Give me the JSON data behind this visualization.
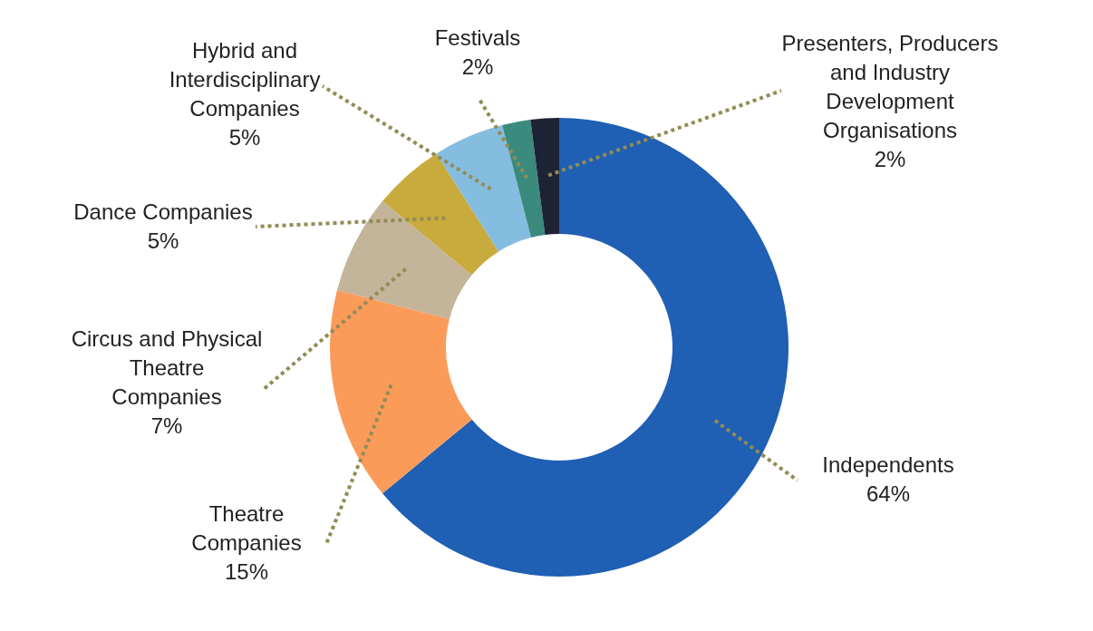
{
  "chart_data": {
    "type": "donut",
    "categories": [
      "Independents",
      "Theatre Companies",
      "Circus and Physical Theatre Companies",
      "Dance Companies",
      "Hybrid and Interdisciplinary Companies",
      "Festivals",
      "Presenters, Producers and Industry Development Organisations"
    ],
    "values": [
      64,
      15,
      7,
      5,
      5,
      2,
      2
    ],
    "value_labels": [
      "64%",
      "15%",
      "7%",
      "5%",
      "5%",
      "2%",
      "2%"
    ],
    "colors": [
      "#1f5fb4",
      "#fb9b5a",
      "#c4b49a",
      "#c9aa3c",
      "#85bde0",
      "#3a8a7e",
      "#1e2235"
    ]
  }
}
